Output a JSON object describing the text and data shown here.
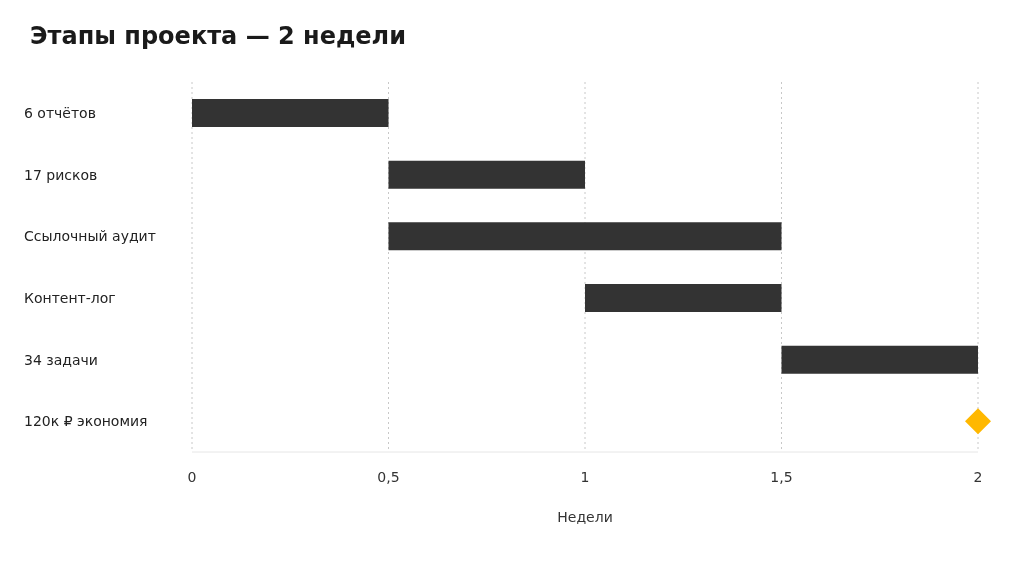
{
  "chart_data": {
    "type": "bar",
    "orientation": "horizontal",
    "title": "Этапы проекта — 2 недели",
    "xlabel": "Недели",
    "categories": [
      "6 отчётов",
      "17 рисков",
      "Ссылочный аудит",
      "Контент-лог",
      "34 задачи",
      "120к ₽ экономия"
    ],
    "series": [
      {
        "color": "#333333",
        "base": [
          0,
          0.5,
          0.5,
          1,
          1.5,
          null
        ],
        "values": [
          0.5,
          0.5,
          1,
          0.5,
          0.5,
          null
        ]
      },
      {
        "type": "scatter",
        "color": "#ffb800",
        "marker": "diamond",
        "x": [
          "120к ₽ экономия"
        ],
        "values": [
          2
        ]
      }
    ],
    "xlim": [
      0,
      2
    ],
    "xticks": [
      0,
      {
        "value": 0.5,
        "label": "0,5"
      },
      1,
      {
        "value": 1.5,
        "label": "1,5"
      },
      2
    ],
    "grid": "x",
    "legend": false
  }
}
